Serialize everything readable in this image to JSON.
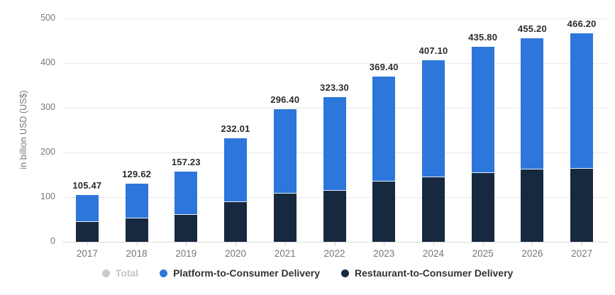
{
  "chart_data": {
    "type": "bar",
    "stacked": true,
    "title": "",
    "ylabel": "in billion USD (US$)",
    "ylim": [
      0,
      500
    ],
    "yticks": [
      0,
      100,
      200,
      300,
      400,
      500
    ],
    "grid": true,
    "categories": [
      "2017",
      "2018",
      "2019",
      "2020",
      "2021",
      "2022",
      "2023",
      "2024",
      "2025",
      "2026",
      "2027"
    ],
    "series": [
      {
        "name": "Restaurant-to-Consumer Delivery",
        "color": "#16293f",
        "values": [
          44,
          52,
          61,
          89,
          108,
          115,
          135,
          145,
          154,
          162,
          163
        ]
      },
      {
        "name": "Platform-to-Consumer Delivery",
        "color": "#2d76db",
        "values": [
          61.47,
          77.62,
          96.23,
          143.01,
          188.4,
          208.3,
          234.4,
          262.1,
          281.8,
          293.2,
          303.2
        ]
      }
    ],
    "totals": [
      105.47,
      129.62,
      157.23,
      232.01,
      296.4,
      323.3,
      369.4,
      407.1,
      435.8,
      455.2,
      466.2
    ],
    "total_labels": [
      "105.47",
      "129.62",
      "157.23",
      "232.01",
      "296.40",
      "323.30",
      "369.40",
      "407.10",
      "435.80",
      "455.20",
      "466.20"
    ],
    "legend_position": "bottom",
    "legend": [
      {
        "label": "Total",
        "color": "#c9c9c9",
        "disabled": true
      },
      {
        "label": "Platform-to-Consumer Delivery",
        "color": "#2d76db",
        "disabled": false
      },
      {
        "label": "Restaurant-to-Consumer Delivery",
        "color": "#16293f",
        "disabled": false
      }
    ]
  },
  "colors": {
    "platform_blue": "#2d76db",
    "restaurant_navy": "#16293f",
    "total_gray": "#c9c9c9",
    "gridline": "#e8e8e8",
    "axis_text": "#767676",
    "value_label": "#2b2b2b"
  }
}
